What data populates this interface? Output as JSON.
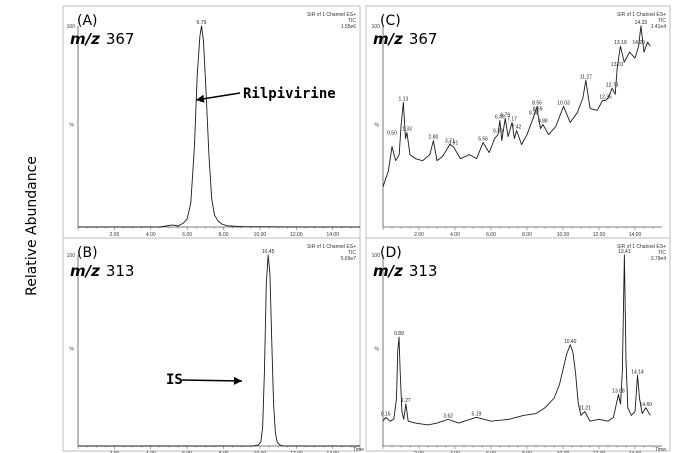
{
  "chart_data": {
    "ylabel": "Relative Abundance",
    "panels": [
      {
        "id": "A",
        "letter": "(A)",
        "mz_prefix": "m/z",
        "mz_value": "367",
        "header_line1": "SIR of 1 Channel ES+",
        "header_line2": "TIC",
        "intensity": "1.55e6",
        "y_top_label": "100",
        "y_mid_label": "%",
        "type": "line",
        "xlim": [
          0,
          15.5
        ],
        "ylim": [
          0,
          100
        ],
        "x_ticks": [
          "2.00",
          "4.00",
          "6.00",
          "8.00",
          "10.00",
          "12.00",
          "14.00"
        ],
        "x_axis_suffix": "",
        "annotation": "Rilpivirine",
        "peak_labels": [
          {
            "x": 6.79,
            "y": 100,
            "text": "6.79"
          }
        ],
        "series": [
          {
            "x": [
              0,
              4.5,
              5.2,
              5.5,
              5.8,
              6.0,
              6.2,
              6.4,
              6.55,
              6.7,
              6.79,
              6.9,
              7.05,
              7.2,
              7.35,
              7.5,
              7.7,
              7.9,
              8.2,
              9,
              12,
              15.5
            ],
            "y": [
              0,
              0,
              1,
              0.5,
              2,
              4,
              12,
              40,
              75,
              95,
              100,
              92,
              65,
              35,
              14,
              6,
              3,
              1.5,
              0.6,
              0.2,
              0,
              0
            ]
          }
        ]
      },
      {
        "id": "B",
        "letter": "(B)",
        "mz_prefix": "m/z",
        "mz_value": "313",
        "header_line1": "SIR of 1 Channel ES+",
        "header_line2": "TIC",
        "intensity": "5.69e7",
        "y_top_label": "100",
        "y_mid_label": "%",
        "type": "line",
        "xlim": [
          0,
          15.5
        ],
        "ylim": [
          0,
          100
        ],
        "x_ticks": [
          "2.00",
          "4.00",
          "6.00",
          "8.00",
          "10.00",
          "12.00",
          "14.00"
        ],
        "x_axis_suffix": "Time",
        "annotation": "IS",
        "peak_labels": [
          {
            "x": 10.45,
            "y": 100,
            "text": "10.45"
          }
        ],
        "series": [
          {
            "x": [
              0,
              9.6,
              9.9,
              10.05,
              10.15,
              10.25,
              10.35,
              10.45,
              10.55,
              10.65,
              10.75,
              10.85,
              10.95,
              11.1,
              11.3,
              15.5
            ],
            "y": [
              0,
              0,
              0.5,
              2,
              10,
              40,
              85,
              100,
              90,
              55,
              22,
              7,
              2,
              0.5,
              0,
              0
            ]
          }
        ]
      },
      {
        "id": "C",
        "letter": "(C)",
        "mz_prefix": "m/z",
        "mz_value": "367",
        "header_line1": "SIR of 1 Channel ES+",
        "header_line2": "TIC",
        "intensity": "1.41e4",
        "y_top_label": "100",
        "y_mid_label": "%",
        "type": "line",
        "xlim": [
          0,
          15.5
        ],
        "ylim": [
          0,
          100
        ],
        "x_ticks": [
          "2.00",
          "4.00",
          "6.00",
          "8.00",
          "10.00",
          "12.00",
          "14.00"
        ],
        "x_axis_suffix": "",
        "annotation": "",
        "peak_labels": [
          {
            "x": 0.5,
            "y": 45,
            "text": "0.50"
          },
          {
            "x": 1.13,
            "y": 62,
            "text": "1.13"
          },
          {
            "x": 1.33,
            "y": 47,
            "text": "1.33"
          },
          {
            "x": 2.8,
            "y": 43,
            "text": "2.80"
          },
          {
            "x": 3.71,
            "y": 41,
            "text": "3.71"
          },
          {
            "x": 3.91,
            "y": 40,
            "text": "3.91"
          },
          {
            "x": 5.56,
            "y": 42,
            "text": "5.56"
          },
          {
            "x": 6.39,
            "y": 46,
            "text": "6.39"
          },
          {
            "x": 6.49,
            "y": 53,
            "text": "6.49"
          },
          {
            "x": 6.79,
            "y": 54,
            "text": "6.79"
          },
          {
            "x": 7.17,
            "y": 52,
            "text": "7.17"
          },
          {
            "x": 7.42,
            "y": 48,
            "text": "7.42"
          },
          {
            "x": 8.38,
            "y": 55,
            "text": "8.38"
          },
          {
            "x": 8.56,
            "y": 60,
            "text": "8.56"
          },
          {
            "x": 8.59,
            "y": 57,
            "text": "8.59"
          },
          {
            "x": 8.88,
            "y": 51,
            "text": "8.88"
          },
          {
            "x": 10.03,
            "y": 60,
            "text": "10.03"
          },
          {
            "x": 11.27,
            "y": 73,
            "text": "11.27"
          },
          {
            "x": 12.36,
            "y": 63,
            "text": "12.36"
          },
          {
            "x": 12.73,
            "y": 69,
            "text": "12.73"
          },
          {
            "x": 13.01,
            "y": 79,
            "text": "13.01"
          },
          {
            "x": 13.19,
            "y": 90,
            "text": "13.19"
          },
          {
            "x": 14.2,
            "y": 90,
            "text": "14.20"
          },
          {
            "x": 14.33,
            "y": 100,
            "text": "14.33"
          }
        ],
        "series": [
          {
            "x": [
              0,
              0.3,
              0.5,
              0.7,
              0.9,
              1.0,
              1.13,
              1.25,
              1.33,
              1.5,
              1.8,
              2.2,
              2.6,
              2.8,
              3.0,
              3.3,
              3.71,
              3.91,
              4.3,
              4.8,
              5.2,
              5.56,
              5.9,
              6.2,
              6.39,
              6.49,
              6.6,
              6.79,
              6.95,
              7.17,
              7.3,
              7.42,
              7.7,
              8.0,
              8.38,
              8.56,
              8.59,
              8.75,
              8.88,
              9.2,
              9.6,
              10.03,
              10.4,
              10.8,
              11.1,
              11.27,
              11.5,
              11.9,
              12.2,
              12.36,
              12.5,
              12.73,
              12.9,
              13.01,
              13.19,
              13.4,
              13.7,
              14.0,
              14.2,
              14.33,
              14.5,
              14.7,
              14.85
            ],
            "y": [
              20,
              28,
              40,
              33,
              36,
              50,
              62,
              44,
              47,
              36,
              34,
              33,
              36,
              43,
              33,
              35,
              41,
              40,
              34,
              36,
              34,
              42,
              37,
              44,
              46,
              53,
              43,
              54,
              45,
              52,
              44,
              48,
              41,
              46,
              55,
              60,
              57,
              49,
              51,
              46,
              50,
              60,
              52,
              57,
              64,
              73,
              59,
              58,
              63,
              63,
              64,
              69,
              66,
              79,
              90,
              82,
              87,
              84,
              90,
              100,
              87,
              92,
              90
            ]
          }
        ]
      },
      {
        "id": "D",
        "letter": "(D)",
        "mz_prefix": "m/z",
        "mz_value": "313",
        "header_line1": "SIR of 1 Channel ES+",
        "header_line2": "TIC",
        "intensity": "3.79e4",
        "y_top_label": "100",
        "y_mid_label": "%",
        "type": "line",
        "xlim": [
          0,
          15.5
        ],
        "ylim": [
          0,
          100
        ],
        "x_ticks": [
          "2.00",
          "4.00",
          "6.00",
          "8.00",
          "10.00",
          "12.00",
          "14.00"
        ],
        "x_axis_suffix": "Time",
        "annotation": "",
        "peak_labels": [
          {
            "x": 0.15,
            "y": 15,
            "text": "0.15"
          },
          {
            "x": 0.89,
            "y": 57,
            "text": "0.89"
          },
          {
            "x": 1.27,
            "y": 22,
            "text": "1.27"
          },
          {
            "x": 3.62,
            "y": 14,
            "text": "3.62"
          },
          {
            "x": 5.19,
            "y": 15,
            "text": "5.19"
          },
          {
            "x": 10.4,
            "y": 53,
            "text": "10.40"
          },
          {
            "x": 11.21,
            "y": 18,
            "text": "11.21"
          },
          {
            "x": 13.08,
            "y": 27,
            "text": "13.08"
          },
          {
            "x": 13.41,
            "y": 100,
            "text": "13.41"
          },
          {
            "x": 14.14,
            "y": 37,
            "text": "14.14"
          },
          {
            "x": 14.6,
            "y": 20,
            "text": "14.60"
          }
        ],
        "series": [
          {
            "x": [
              0,
              0.15,
              0.4,
              0.6,
              0.75,
              0.82,
              0.89,
              0.95,
              1.05,
              1.15,
              1.27,
              1.4,
              1.8,
              2.5,
              3.0,
              3.62,
              4.2,
              5.19,
              6.0,
              7.0,
              7.8,
              8.5,
              9.0,
              9.5,
              9.8,
              10.0,
              10.2,
              10.4,
              10.55,
              10.7,
              10.85,
              11.0,
              11.21,
              11.5,
              12.0,
              12.5,
              12.8,
              13.08,
              13.2,
              13.3,
              13.41,
              13.5,
              13.6,
              13.8,
              14.0,
              14.14,
              14.25,
              14.4,
              14.6,
              14.85
            ],
            "y": [
              13,
              15,
              13,
              14,
              25,
              50,
              57,
              40,
              18,
              14,
              22,
              13,
              12,
              11,
              12,
              14,
              12,
              15,
              13,
              14,
              16,
              17,
              20,
              25,
              32,
              40,
              48,
              53,
              49,
              38,
              22,
              16,
              18,
              13,
              14,
              13,
              15,
              27,
              22,
              40,
              100,
              45,
              20,
              16,
              18,
              37,
              25,
              17,
              20,
              16
            ]
          }
        ]
      }
    ]
  }
}
